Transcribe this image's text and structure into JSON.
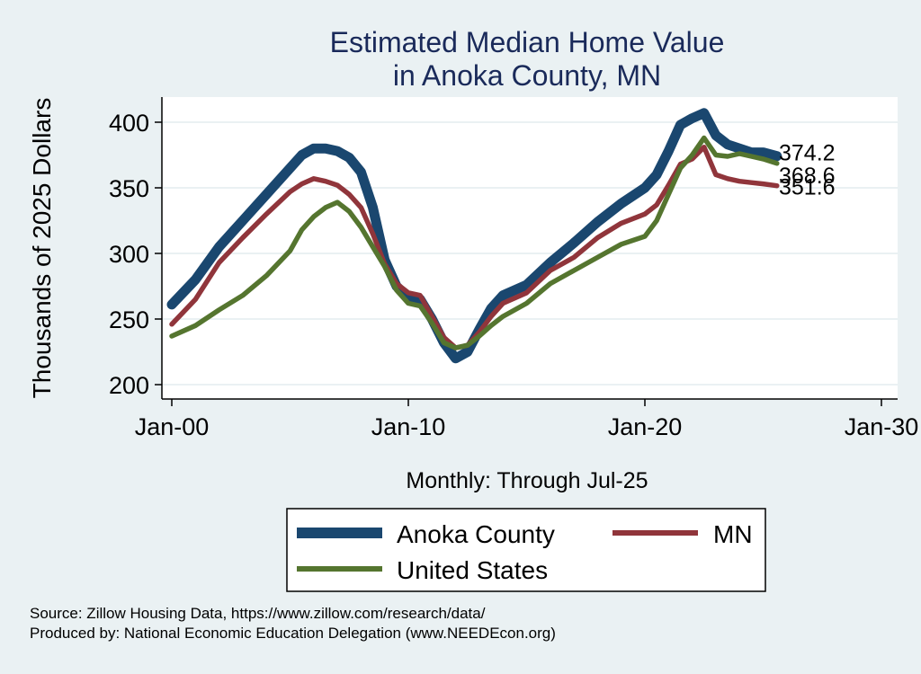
{
  "chart_data": {
    "type": "line",
    "title_line1": "Estimated Median Home Value",
    "title_line2": "in Anoka County, MN",
    "ylabel": "Thousands of 2025 Dollars",
    "xlabel": "Monthly: Through Jul-25",
    "ylim": [
      195,
      410
    ],
    "xlim": [
      2000,
      2030
    ],
    "y_ticks": [
      200,
      250,
      300,
      350,
      400
    ],
    "x_ticks": [
      {
        "value": 2000,
        "label": "Jan-00"
      },
      {
        "value": 2010,
        "label": "Jan-10"
      },
      {
        "value": 2020,
        "label": "Jan-20"
      },
      {
        "value": 2030,
        "label": "Jan-30"
      }
    ],
    "grid": true,
    "legend_position": "bottom",
    "series": [
      {
        "name": "Anoka County",
        "color": "#1a476f",
        "end_label": "374.2",
        "points": [
          [
            2000,
            261
          ],
          [
            2001,
            280
          ],
          [
            2002,
            305
          ],
          [
            2003,
            325
          ],
          [
            2004,
            345
          ],
          [
            2005,
            365
          ],
          [
            2005.5,
            375
          ],
          [
            2006,
            380
          ],
          [
            2006.5,
            380
          ],
          [
            2007,
            378
          ],
          [
            2007.5,
            373
          ],
          [
            2008,
            362
          ],
          [
            2008.5,
            335
          ],
          [
            2009,
            295
          ],
          [
            2009.5,
            275
          ],
          [
            2010,
            266
          ],
          [
            2010.5,
            265
          ],
          [
            2011,
            250
          ],
          [
            2011.5,
            232
          ],
          [
            2012,
            220
          ],
          [
            2012.5,
            225
          ],
          [
            2013,
            242
          ],
          [
            2013.5,
            258
          ],
          [
            2014,
            268
          ],
          [
            2015,
            276
          ],
          [
            2016,
            293
          ],
          [
            2017,
            308
          ],
          [
            2018,
            324
          ],
          [
            2019,
            338
          ],
          [
            2020,
            350
          ],
          [
            2020.5,
            360
          ],
          [
            2021,
            378
          ],
          [
            2021.5,
            398
          ],
          [
            2022,
            403
          ],
          [
            2022.5,
            407
          ],
          [
            2023,
            390
          ],
          [
            2023.5,
            383
          ],
          [
            2024,
            380
          ],
          [
            2024.5,
            377
          ],
          [
            2025,
            377
          ],
          [
            2025.58,
            374.2
          ]
        ]
      },
      {
        "name": "MN",
        "color": "#90353b",
        "end_label": "351.6",
        "points": [
          [
            2000,
            246
          ],
          [
            2001,
            265
          ],
          [
            2002,
            293
          ],
          [
            2003,
            312
          ],
          [
            2004,
            330
          ],
          [
            2005,
            347
          ],
          [
            2005.5,
            353
          ],
          [
            2006,
            357
          ],
          [
            2006.5,
            355
          ],
          [
            2007,
            352
          ],
          [
            2007.5,
            345
          ],
          [
            2008,
            335
          ],
          [
            2008.5,
            315
          ],
          [
            2009,
            292
          ],
          [
            2009.5,
            277
          ],
          [
            2010,
            270
          ],
          [
            2010.5,
            268
          ],
          [
            2011,
            252
          ],
          [
            2011.5,
            236
          ],
          [
            2012,
            228
          ],
          [
            2012.5,
            230
          ],
          [
            2013,
            240
          ],
          [
            2013.5,
            252
          ],
          [
            2014,
            262
          ],
          [
            2015,
            270
          ],
          [
            2016,
            287
          ],
          [
            2017,
            297
          ],
          [
            2018,
            312
          ],
          [
            2019,
            323
          ],
          [
            2020,
            330
          ],
          [
            2020.5,
            337
          ],
          [
            2021,
            352
          ],
          [
            2021.5,
            368
          ],
          [
            2022,
            372
          ],
          [
            2022.5,
            381
          ],
          [
            2023,
            360
          ],
          [
            2023.5,
            357
          ],
          [
            2024,
            355
          ],
          [
            2024.5,
            354
          ],
          [
            2025,
            353
          ],
          [
            2025.58,
            351.6
          ]
        ]
      },
      {
        "name": "United States",
        "color": "#55752f",
        "end_label": "368.6",
        "points": [
          [
            2000,
            237
          ],
          [
            2001,
            245
          ],
          [
            2002,
            257
          ],
          [
            2003,
            268
          ],
          [
            2004,
            283
          ],
          [
            2005,
            302
          ],
          [
            2005.5,
            318
          ],
          [
            2006,
            328
          ],
          [
            2006.5,
            335
          ],
          [
            2007,
            339
          ],
          [
            2007.5,
            332
          ],
          [
            2008,
            320
          ],
          [
            2008.5,
            305
          ],
          [
            2009,
            290
          ],
          [
            2009.5,
            272
          ],
          [
            2010,
            262
          ],
          [
            2010.5,
            260
          ],
          [
            2011,
            247
          ],
          [
            2011.5,
            232
          ],
          [
            2012,
            228
          ],
          [
            2012.5,
            230
          ],
          [
            2013,
            237
          ],
          [
            2013.5,
            245
          ],
          [
            2014,
            252
          ],
          [
            2015,
            262
          ],
          [
            2016,
            277
          ],
          [
            2017,
            287
          ],
          [
            2018,
            297
          ],
          [
            2019,
            307
          ],
          [
            2020,
            313
          ],
          [
            2020.5,
            325
          ],
          [
            2021,
            345
          ],
          [
            2021.5,
            365
          ],
          [
            2022,
            375
          ],
          [
            2022.5,
            388
          ],
          [
            2023,
            375
          ],
          [
            2023.5,
            374
          ],
          [
            2024,
            376
          ],
          [
            2024.5,
            374
          ],
          [
            2025,
            372
          ],
          [
            2025.58,
            368.6
          ]
        ]
      }
    ]
  },
  "source_line1": "Source: Zillow Housing Data, https://www.zillow.com/research/data/",
  "source_line2": "Produced by: National Economic Education Delegation (www.NEEDEcon.org)"
}
